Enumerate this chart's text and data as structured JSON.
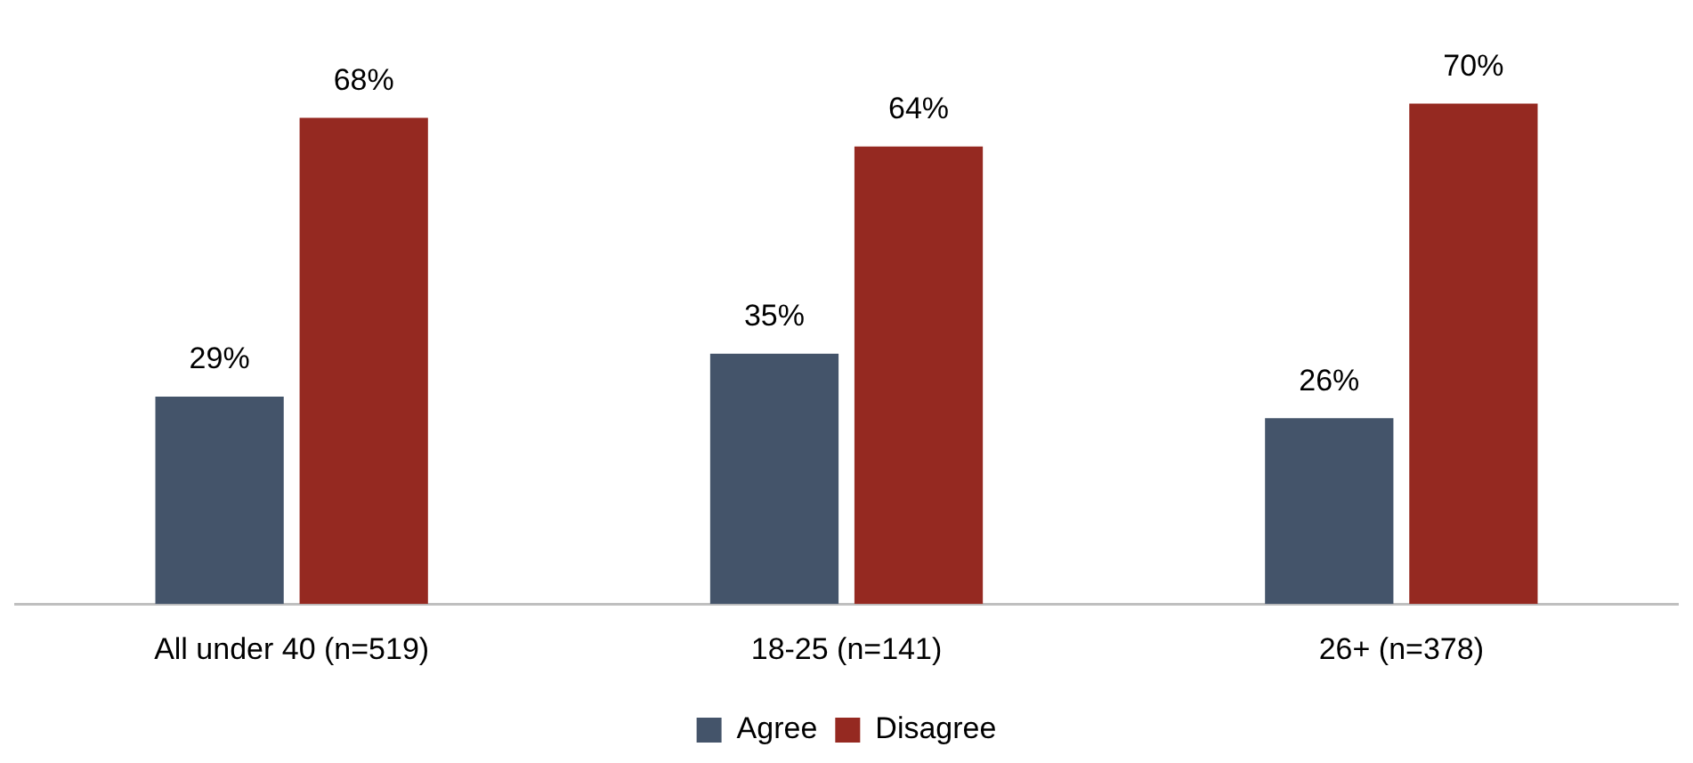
{
  "chart_data": {
    "type": "bar",
    "categories": [
      "All under 40 (n=519)",
      "18-25 (n=141)",
      "26+ (n=378)"
    ],
    "series": [
      {
        "name": "Agree",
        "color": "#44546a",
        "values": [
          29,
          35,
          26
        ],
        "value_labels": [
          "29%",
          "35%",
          "26%"
        ]
      },
      {
        "name": "Disagree",
        "color": "#952921",
        "values": [
          68,
          64,
          70
        ],
        "value_labels": [
          "68%",
          "64%",
          "70%"
        ]
      }
    ],
    "legend": "bottom",
    "grid": false,
    "tick_labels": "x"
  }
}
